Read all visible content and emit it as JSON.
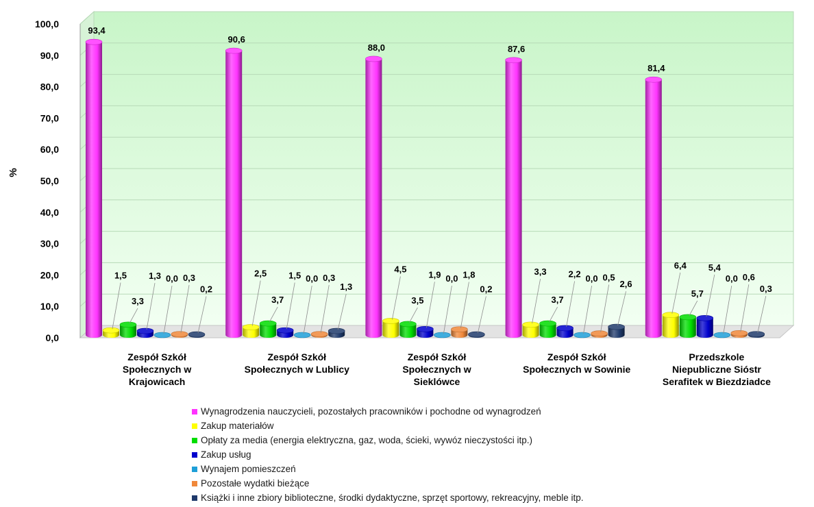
{
  "chart_data": {
    "type": "bar",
    "title": "",
    "xlabel": "",
    "ylabel": "%",
    "ylim": [
      0,
      100
    ],
    "yticks": [
      "0,0",
      "10,0",
      "20,0",
      "30,0",
      "40,0",
      "50,0",
      "60,0",
      "70,0",
      "80,0",
      "90,0",
      "100,0"
    ],
    "grid": true,
    "legend_position": "bottom",
    "categories": [
      [
        "Zespół Szkół",
        "Społecznych w",
        "Krajowicach"
      ],
      [
        "Zespół Szkół",
        "Społecznych w Lublicy"
      ],
      [
        "Zespół Szkół",
        "Społecznych w",
        "Sieklówce"
      ],
      [
        "Zespół Szkół",
        "Społecznych w Sowinie"
      ],
      [
        "Przedszkole",
        "Niepubliczne Sióstr",
        "Serafitek w Biezdziadce"
      ]
    ],
    "series": [
      {
        "name": "Wynagrodzenia nauczycieli, pozostałych pracowników i pochodne od wynagrodzeń",
        "color": "#ff33ff",
        "values": [
          93.4,
          90.6,
          88.0,
          87.6,
          81.4
        ],
        "labels": [
          "93,4",
          "90,6",
          "88,0",
          "87,6",
          "81,4"
        ]
      },
      {
        "name": "Zakup materiałów",
        "color": "#ffff00",
        "values": [
          1.5,
          2.5,
          4.5,
          3.3,
          6.4
        ],
        "labels": [
          "1,5",
          "2,5",
          "4,5",
          "3,3",
          "6,4"
        ]
      },
      {
        "name": "Opłaty za media (energia elektryczna, gaz, woda, ścieki, wywóz nieczystości itp.)",
        "color": "#00dd00",
        "values": [
          3.3,
          3.7,
          3.5,
          3.7,
          5.7
        ],
        "labels": [
          "3,3",
          "3,7",
          "3,5",
          "3,7",
          "5,7"
        ]
      },
      {
        "name": "Zakup usług",
        "color": "#0000cc",
        "values": [
          1.3,
          1.5,
          1.9,
          2.2,
          5.4
        ],
        "labels": [
          "1,3",
          "1,5",
          "1,9",
          "2,2",
          "5,4"
        ]
      },
      {
        "name": "Wynajem pomieszczeń",
        "color": "#1e9fd8",
        "values": [
          0.0,
          0.0,
          0.0,
          0.0,
          0.0
        ],
        "labels": [
          "0,0",
          "0,0",
          "0,0",
          "0,0",
          "0,0"
        ]
      },
      {
        "name": "Pozostałe wydatki bieżące",
        "color": "#f0883a",
        "values": [
          0.3,
          0.3,
          1.8,
          0.5,
          0.6
        ],
        "labels": [
          "0,3",
          "0,3",
          "1,8",
          "0,5",
          "0,6"
        ]
      },
      {
        "name": "Książki i inne zbiory biblioteczne, środki dydaktyczne, sprzęt sportowy, rekreacyjny, meble itp.",
        "color": "#1f3a6b",
        "values": [
          0.2,
          1.3,
          0.2,
          2.6,
          0.3
        ],
        "labels": [
          "0,2",
          "1,3",
          "0,2",
          "2,6",
          "0,3"
        ]
      }
    ]
  }
}
